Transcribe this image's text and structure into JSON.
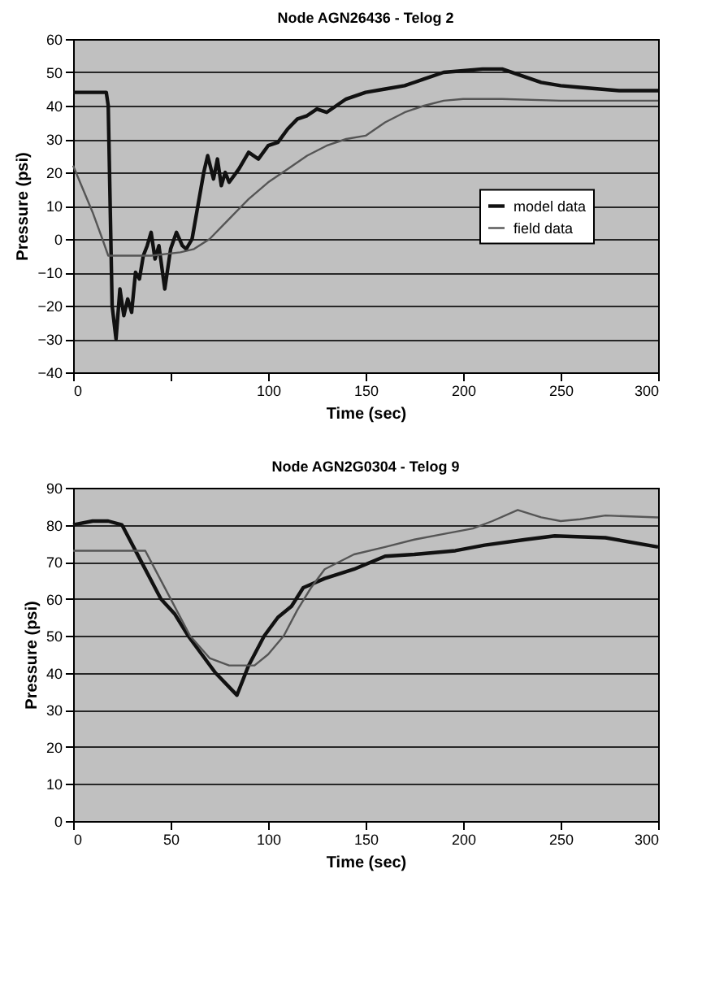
{
  "chart_data": [
    {
      "type": "line",
      "title": "Node AGN26436 - Telog 2",
      "xlabel": "Time (sec)",
      "ylabel": "Pressure (psi)",
      "xlim": [
        0,
        300
      ],
      "xticks": [
        0,
        {
          "value": 50,
          "label": null
        },
        100,
        150,
        200,
        250,
        300
      ],
      "ylim": [
        -40,
        60
      ],
      "yticks": [
        -40,
        -30,
        -20,
        -10,
        0,
        10,
        20,
        30,
        40,
        50,
        60
      ],
      "grid": "y",
      "legend": "right",
      "series": [
        {
          "name": "model data",
          "color": "#111111",
          "x": [
            0,
            17,
            18,
            19,
            20,
            22,
            24,
            26,
            28,
            30,
            32,
            34,
            36,
            38,
            40,
            42,
            44,
            47,
            50,
            53,
            56,
            58,
            61,
            64,
            67,
            69,
            72,
            74,
            76,
            78,
            80,
            85,
            90,
            95,
            100,
            105,
            110,
            115,
            120,
            125,
            130,
            140,
            150,
            160,
            170,
            180,
            190,
            200,
            210,
            220,
            230,
            240,
            250,
            260,
            270,
            280,
            300
          ],
          "values": [
            44,
            44,
            40,
            10,
            -20,
            -30,
            -15,
            -23,
            -18,
            -22,
            -10,
            -12,
            -5,
            -2,
            2,
            -6,
            -2,
            -15,
            -3,
            2,
            -2,
            -3,
            0,
            10,
            20,
            25,
            18,
            24,
            16,
            20,
            17,
            21,
            26,
            24,
            28,
            29,
            33,
            36,
            37,
            39,
            38,
            42,
            44,
            45,
            46,
            48,
            50,
            50.5,
            51,
            51,
            49,
            47,
            46,
            45.5,
            45,
            44.5,
            44.5
          ]
        },
        {
          "name": "field data",
          "color": "#555555",
          "x": [
            0,
            5,
            10,
            15,
            18,
            25,
            40,
            55,
            62,
            70,
            80,
            90,
            100,
            110,
            120,
            130,
            140,
            150,
            160,
            170,
            180,
            190,
            200,
            220,
            250,
            270,
            300
          ],
          "values": [
            22,
            15,
            8,
            0,
            -5,
            -5,
            -5,
            -4,
            -3,
            0,
            6,
            12,
            17,
            21,
            25,
            28,
            30,
            31,
            35,
            38,
            40,
            41.5,
            42,
            42,
            41.5,
            41.5,
            41.5
          ]
        }
      ]
    },
    {
      "type": "line",
      "title": "Node AGN2G0304 - Telog 9",
      "xlabel": "Time (sec)",
      "ylabel": "Pressure (psi)",
      "xlim": [
        0,
        300
      ],
      "xticks": [
        0,
        50,
        100,
        150,
        200,
        250,
        300
      ],
      "ylim": [
        0,
        90
      ],
      "yticks": [
        0,
        10,
        20,
        30,
        40,
        50,
        60,
        70,
        80,
        90
      ],
      "grid": "y",
      "legend": "right",
      "series": [
        {
          "name": "model data",
          "color": "#111111",
          "x": [
            0,
            10,
            18,
            25,
            35,
            45,
            52,
            59,
            66,
            73,
            84,
            90,
            98,
            105,
            112,
            118,
            129,
            144,
            160,
            175,
            196,
            211,
            232,
            247,
            273,
            300
          ],
          "values": [
            80,
            81,
            81,
            80,
            70,
            60,
            56,
            50,
            45,
            40,
            34,
            42,
            50,
            55,
            58,
            63,
            65.5,
            68,
            71.5,
            72,
            73,
            74.5,
            76,
            77,
            76.5,
            74
          ]
        },
        {
          "name": "field data",
          "color": "#555555",
          "x": [
            0,
            37,
            40,
            50,
            60,
            70,
            80,
            93,
            100,
            108,
            115,
            122,
            129,
            144,
            160,
            175,
            190,
            205,
            215,
            228,
            240,
            250,
            260,
            273,
            300
          ],
          "values": [
            73,
            73,
            70,
            60,
            50,
            44,
            42,
            42,
            45,
            50,
            57,
            63,
            68,
            72,
            74,
            76,
            77.5,
            79,
            81,
            84,
            82,
            81,
            81.5,
            82.5,
            82
          ]
        }
      ]
    }
  ]
}
